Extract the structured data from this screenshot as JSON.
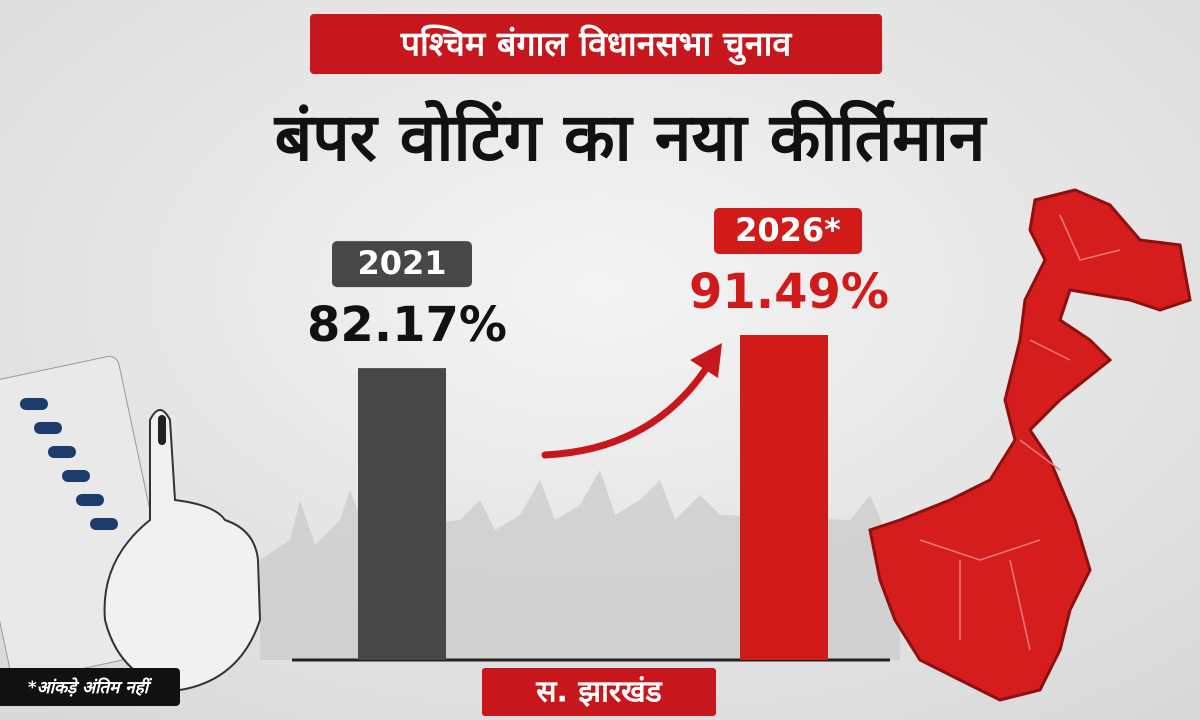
{
  "chart_data": {
    "type": "bar",
    "kicker": "पश्चिम बंगाल विधानसभा चुनाव",
    "title": "बंपर वोटिंग का नया कीर्तिमान",
    "categories": [
      "2021",
      "2026*"
    ],
    "series": [
      {
        "values": [
          82.17,
          91.49
        ],
        "value_labels": [
          "82.17%",
          "91.49%"
        ],
        "colors": [
          "#474747",
          "#d11a1a"
        ]
      }
    ],
    "footnote": "*आंकड़े अंतिम नहीं",
    "brand": "स. झारखंड"
  }
}
